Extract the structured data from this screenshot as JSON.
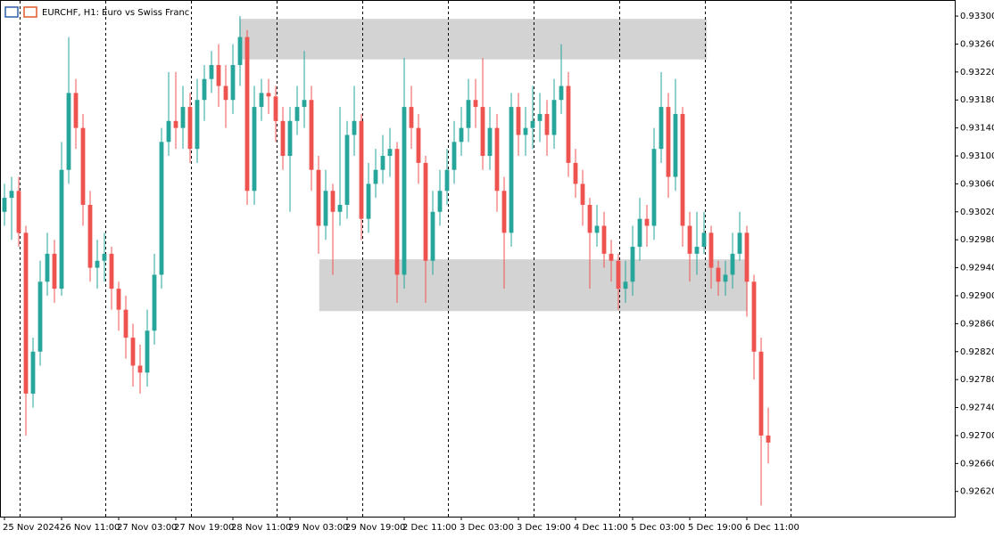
{
  "chart_data": {
    "type": "candlestick",
    "title": "EURCHF, H1:  Euro vs Swiss Franc",
    "up_color": "#26a69a",
    "down_color": "#ef5350",
    "zone_color": "#d3d3d3",
    "open": [
      0.9302,
      0.9304,
      0.9305,
      0.9299,
      0.9276,
      0.9282,
      0.9292,
      0.9296,
      0.9291,
      0.9308,
      0.9319,
      0.9314,
      0.9303,
      0.9294,
      0.9295,
      0.9296,
      0.9291,
      0.9288,
      0.9284,
      0.928,
      0.9279,
      0.9285,
      0.9293,
      0.9312,
      0.9315,
      0.9314,
      0.9317,
      0.9311,
      0.9318,
      0.9321,
      0.9323,
      0.932,
      0.9318,
      0.9323,
      0.9327,
      0.9305,
      0.9317,
      0.9319,
      0.93185,
      0.9315,
      0.931,
      0.9315,
      0.9317,
      0.9318,
      0.9308,
      0.93,
      0.9305,
      0.9302,
      0.9303,
      0.9313,
      0.9315,
      0.9301,
      0.9306,
      0.9308,
      0.931,
      0.9311,
      0.9293,
      0.9317,
      0.9314,
      0.9309,
      0.9295,
      0.9302,
      0.9305,
      0.9308,
      0.9312,
      0.9314,
      0.9318,
      0.9317,
      0.931,
      0.9314,
      0.9305,
      0.9299,
      0.9317,
      0.9313,
      0.9314,
      0.9315,
      0.9316,
      0.9313,
      0.9318,
      0.932,
      0.9309,
      0.9306,
      0.9303,
      0.9299,
      0.93,
      0.9296,
      0.9295,
      0.9291,
      0.9292,
      0.9297,
      0.9301,
      0.93,
      0.9311,
      0.9317,
      0.9307,
      0.9316,
      0.93,
      0.9296,
      0.9297,
      0.9299,
      0.9294,
      0.9292,
      0.9293,
      0.9296,
      0.9299,
      0.9292,
      0.9282,
      0.927
    ],
    "high": [
      0.9306,
      0.9307,
      0.9307,
      0.93,
      0.9284,
      0.9295,
      0.9299,
      0.9298,
      0.9312,
      0.9327,
      0.9321,
      0.9316,
      0.9305,
      0.9298,
      0.9299,
      0.9297,
      0.9292,
      0.929,
      0.9286,
      0.9283,
      0.9288,
      0.9296,
      0.9314,
      0.9322,
      0.9322,
      0.932,
      0.9319,
      0.9321,
      0.9323,
      0.9325,
      0.9326,
      0.9323,
      0.9326,
      0.933,
      0.9328,
      0.932,
      0.9321,
      0.9321,
      0.932,
      0.9317,
      0.9317,
      0.932,
      0.9325,
      0.932,
      0.931,
      0.9308,
      0.9306,
      0.9317,
      0.9315,
      0.932,
      0.9316,
      0.9309,
      0.9311,
      0.9313,
      0.9314,
      0.9312,
      0.9324,
      0.932,
      0.9316,
      0.931,
      0.9305,
      0.9308,
      0.9311,
      0.9315,
      0.9317,
      0.9321,
      0.9321,
      0.9324,
      0.9317,
      0.9316,
      0.9307,
      0.9319,
      0.9319,
      0.9317,
      0.932,
      0.9319,
      0.9318,
      0.9321,
      0.9326,
      0.9322,
      0.9311,
      0.9308,
      0.9304,
      0.9303,
      0.9302,
      0.9298,
      0.9296,
      0.9295,
      0.93,
      0.9304,
      0.9303,
      0.9314,
      0.9322,
      0.9319,
      0.9321,
      0.9317,
      0.9302,
      0.9302,
      0.9302,
      0.93,
      0.9295,
      0.9295,
      0.9299,
      0.9302,
      0.93,
      0.9293,
      0.9284,
      0.9274
    ],
    "low": [
      0.93,
      0.9298,
      0.9297,
      0.927,
      0.9274,
      0.928,
      0.929,
      0.9289,
      0.929,
      0.9306,
      0.9311,
      0.93,
      0.9292,
      0.9291,
      0.9292,
      0.9288,
      0.9285,
      0.9281,
      0.9277,
      0.9276,
      0.9277,
      0.9283,
      0.9291,
      0.931,
      0.9311,
      0.9311,
      0.9309,
      0.9309,
      0.9315,
      0.9319,
      0.9317,
      0.9314,
      0.9316,
      0.932,
      0.9303,
      0.9303,
      0.9315,
      0.9316,
      0.9312,
      0.9308,
      0.9302,
      0.9313,
      0.9314,
      0.9305,
      0.9296,
      0.9298,
      0.9293,
      0.93,
      0.9301,
      0.931,
      0.9298,
      0.9299,
      0.9304,
      0.9306,
      0.9307,
      0.9289,
      0.9291,
      0.9311,
      0.9306,
      0.9289,
      0.9293,
      0.93,
      0.9303,
      0.9306,
      0.931,
      0.9312,
      0.9314,
      0.9308,
      0.9308,
      0.9302,
      0.9291,
      0.9297,
      0.931,
      0.931,
      0.9311,
      0.9312,
      0.931,
      0.9311,
      0.9316,
      0.9307,
      0.9304,
      0.93,
      0.9291,
      0.9297,
      0.9294,
      0.9292,
      0.9288,
      0.9289,
      0.929,
      0.9295,
      0.9297,
      0.9298,
      0.9309,
      0.9304,
      0.9305,
      0.9297,
      0.9292,
      0.9293,
      0.9296,
      0.9291,
      0.929,
      0.929,
      0.9291,
      0.9295,
      0.9287,
      0.9278,
      0.926,
      0.9266
    ],
    "close": [
      0.9304,
      0.9305,
      0.9299,
      0.9276,
      0.9282,
      0.9292,
      0.9296,
      0.9291,
      0.9308,
      0.9319,
      0.9314,
      0.9303,
      0.9294,
      0.9295,
      0.9296,
      0.9291,
      0.9288,
      0.9284,
      0.928,
      0.9279,
      0.9285,
      0.9293,
      0.9312,
      0.9315,
      0.9314,
      0.9317,
      0.9311,
      0.9318,
      0.9321,
      0.9323,
      0.932,
      0.9318,
      0.9323,
      0.9327,
      0.9305,
      0.9317,
      0.9319,
      0.93185,
      0.9315,
      0.931,
      0.9315,
      0.9317,
      0.9318,
      0.9308,
      0.93,
      0.9305,
      0.9302,
      0.9303,
      0.9313,
      0.9315,
      0.9301,
      0.9306,
      0.9308,
      0.931,
      0.9311,
      0.9293,
      0.9317,
      0.9314,
      0.9309,
      0.9295,
      0.9302,
      0.9305,
      0.9308,
      0.9312,
      0.9314,
      0.9318,
      0.9317,
      0.931,
      0.9314,
      0.9305,
      0.9299,
      0.9317,
      0.9313,
      0.9314,
      0.9315,
      0.9316,
      0.9313,
      0.9318,
      0.932,
      0.9309,
      0.9306,
      0.9303,
      0.9299,
      0.93,
      0.9296,
      0.9295,
      0.9291,
      0.9292,
      0.9297,
      0.9301,
      0.93,
      0.9311,
      0.9317,
      0.9307,
      0.9316,
      0.93,
      0.9296,
      0.9297,
      0.9299,
      0.9294,
      0.9292,
      0.9293,
      0.9296,
      0.9299,
      0.9292,
      0.9282,
      0.927,
      0.9269
    ],
    "zones": [
      {
        "low": 0.93238,
        "high": 0.93296,
        "start": 32.9,
        "end": 98.4
      },
      {
        "low": 0.92878,
        "high": 0.92952,
        "start": 44.1,
        "end": 104.1
      }
    ],
    "xlim": [
      -0.625,
      133.125
    ],
    "ylim": [
      0.92584,
      0.93323
    ],
    "yticks": [
      {
        "value": 0.933,
        "label": "0.93300"
      },
      {
        "value": 0.9326,
        "label": "0.93260"
      },
      {
        "value": 0.9322,
        "label": "0.93220"
      },
      {
        "value": 0.9318,
        "label": "0.93180"
      },
      {
        "value": 0.9314,
        "label": "0.93140"
      },
      {
        "value": 0.931,
        "label": "0.93100"
      },
      {
        "value": 0.9306,
        "label": "0.93060"
      },
      {
        "value": 0.9302,
        "label": "0.93020"
      },
      {
        "value": 0.9298,
        "label": "0.92980"
      },
      {
        "value": 0.9294,
        "label": "0.92940"
      },
      {
        "value": 0.929,
        "label": "0.92900"
      },
      {
        "value": 0.9286,
        "label": "0.92860"
      },
      {
        "value": 0.9282,
        "label": "0.92820"
      },
      {
        "value": 0.9278,
        "label": "0.92780"
      },
      {
        "value": 0.9274,
        "label": "0.92740"
      },
      {
        "value": 0.927,
        "label": "0.92700"
      },
      {
        "value": 0.9266,
        "label": "0.92660"
      },
      {
        "value": 0.9262,
        "label": "0.92620"
      }
    ],
    "xticks": [
      {
        "value": 0,
        "label": "25 Nov 2024"
      },
      {
        "value": 8,
        "label": "26 Nov 11:00"
      },
      {
        "value": 16,
        "label": "27 Nov 03:00"
      },
      {
        "value": 24,
        "label": "27 Nov 19:00"
      },
      {
        "value": 32,
        "label": "28 Nov 11:00"
      },
      {
        "value": 40,
        "label": "29 Nov 03:00"
      },
      {
        "value": 48,
        "label": "29 Nov 19:00"
      },
      {
        "value": 56,
        "label": "2 Dec 11:00"
      },
      {
        "value": 64,
        "label": "3 Dec 03:00"
      },
      {
        "value": 72,
        "label": "3 Dec 19:00"
      },
      {
        "value": 80,
        "label": "4 Dec 11:00"
      },
      {
        "value": 88,
        "label": "5 Dec 03:00"
      },
      {
        "value": 96,
        "label": "5 Dec 19:00"
      },
      {
        "value": 104,
        "label": "6 Dec 11:00"
      }
    ]
  }
}
